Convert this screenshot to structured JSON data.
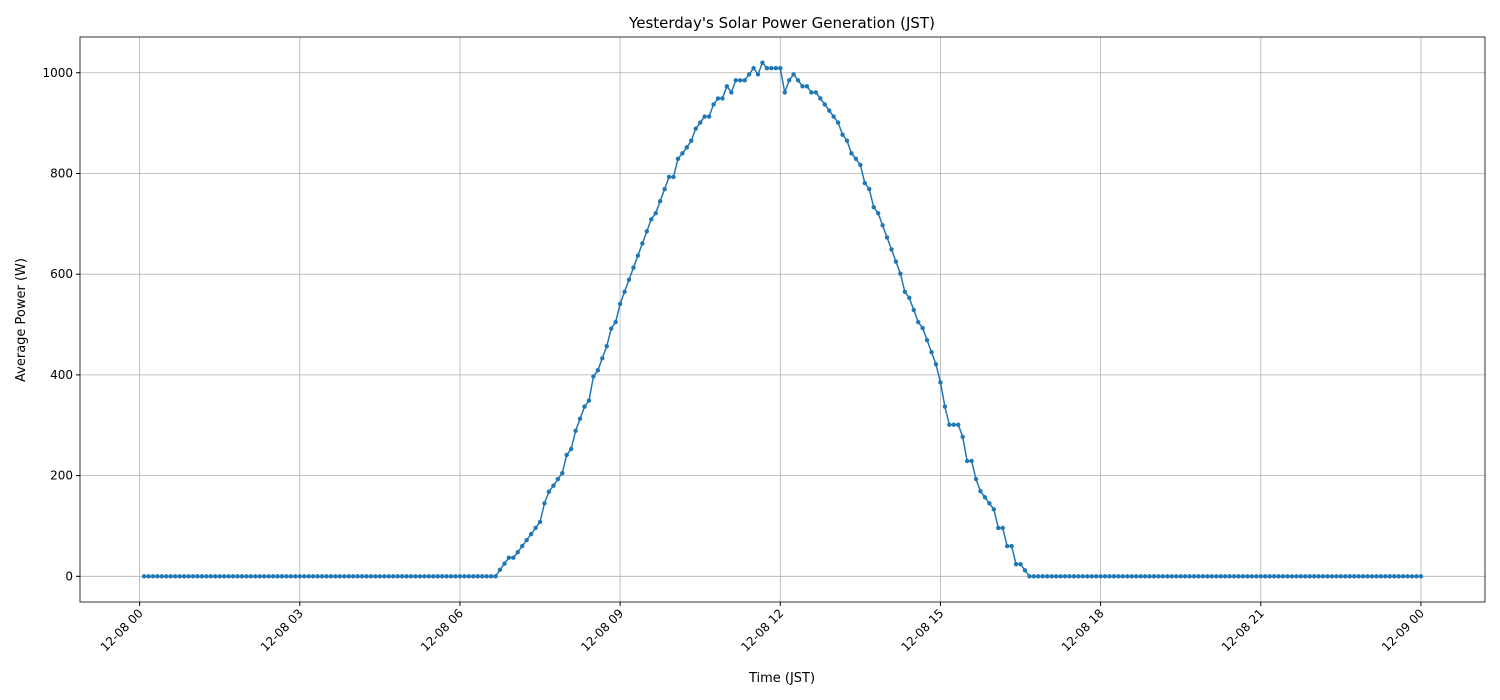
{
  "chart_data": {
    "type": "line",
    "title": "Yesterday's Solar Power Generation (JST)",
    "x_label": "Time (JST)",
    "y_label": "Average Power (W)",
    "x": [
      5,
      10,
      15,
      20,
      25,
      30,
      35,
      40,
      45,
      50,
      55,
      60,
      65,
      70,
      75,
      80,
      85,
      90,
      95,
      100,
      105,
      110,
      115,
      120,
      125,
      130,
      135,
      140,
      145,
      150,
      155,
      160,
      165,
      170,
      175,
      180,
      185,
      190,
      195,
      200,
      205,
      210,
      215,
      220,
      225,
      230,
      235,
      240,
      245,
      250,
      255,
      260,
      265,
      270,
      275,
      280,
      285,
      290,
      295,
      300,
      305,
      310,
      315,
      320,
      325,
      330,
      335,
      340,
      345,
      350,
      355,
      360,
      365,
      370,
      375,
      380,
      385,
      390,
      395,
      400,
      405,
      410,
      415,
      420,
      425,
      430,
      435,
      440,
      445,
      450,
      455,
      460,
      465,
      470,
      475,
      480,
      485,
      490,
      495,
      500,
      505,
      510,
      515,
      520,
      525,
      530,
      535,
      540,
      545,
      550,
      555,
      560,
      565,
      570,
      575,
      580,
      585,
      590,
      595,
      600,
      605,
      610,
      615,
      620,
      625,
      630,
      635,
      640,
      645,
      650,
      655,
      660,
      665,
      670,
      675,
      680,
      685,
      690,
      695,
      700,
      705,
      710,
      715,
      720,
      725,
      730,
      735,
      740,
      745,
      750,
      755,
      760,
      765,
      770,
      775,
      780,
      785,
      790,
      795,
      800,
      805,
      810,
      815,
      820,
      825,
      830,
      835,
      840,
      845,
      850,
      855,
      860,
      865,
      870,
      875,
      880,
      885,
      890,
      895,
      900,
      905,
      910,
      915,
      920,
      925,
      930,
      935,
      940,
      945,
      950,
      955,
      960,
      965,
      970,
      975,
      980,
      985,
      990,
      995,
      1000,
      1005,
      1010,
      1015,
      1020,
      1025,
      1030,
      1035,
      1040,
      1045,
      1050,
      1055,
      1060,
      1065,
      1070,
      1075,
      1080,
      1085,
      1090,
      1095,
      1100,
      1105,
      1110,
      1115,
      1120,
      1125,
      1130,
      1135,
      1140,
      1145,
      1150,
      1155,
      1160,
      1165,
      1170,
      1175,
      1180,
      1185,
      1190,
      1195,
      1200,
      1205,
      1210,
      1215,
      1220,
      1225,
      1230,
      1235,
      1240,
      1245,
      1250,
      1255,
      1260,
      1265,
      1270,
      1275,
      1280,
      1285,
      1290,
      1295,
      1300,
      1305,
      1310,
      1315,
      1320,
      1325,
      1330,
      1335,
      1340,
      1345,
      1350,
      1355,
      1360,
      1365,
      1370,
      1375,
      1380,
      1385,
      1390,
      1395,
      1400,
      1405,
      1410,
      1415,
      1420,
      1425,
      1430,
      1435,
      1440
    ],
    "series": [
      {
        "color": "#1f77b4",
        "values": [
          0,
          0,
          0,
          0,
          0,
          0,
          0,
          0,
          0,
          0,
          0,
          0,
          0,
          0,
          0,
          0,
          0,
          0,
          0,
          0,
          0,
          0,
          0,
          0,
          0,
          0,
          0,
          0,
          0,
          0,
          0,
          0,
          0,
          0,
          0,
          0,
          0,
          0,
          0,
          0,
          0,
          0,
          0,
          0,
          0,
          0,
          0,
          0,
          0,
          0,
          0,
          0,
          0,
          0,
          0,
          0,
          0,
          0,
          0,
          0,
          0,
          0,
          0,
          0,
          0,
          0,
          0,
          0,
          0,
          0,
          0,
          0,
          0,
          0,
          0,
          0,
          0,
          0,
          0,
          0,
          13,
          25,
          37,
          37,
          48,
          60,
          72,
          84,
          96,
          108,
          145,
          168,
          180,
          193,
          205,
          241,
          253,
          289,
          313,
          337,
          349,
          397,
          409,
          433,
          457,
          492,
          505,
          541,
          565,
          589,
          613,
          637,
          661,
          685,
          709,
          721,
          745,
          769,
          793,
          793,
          829,
          840,
          852,
          865,
          889,
          901,
          913,
          913,
          937,
          949,
          949,
          973,
          961,
          985,
          985,
          985,
          997,
          1009,
          997,
          1020,
          1009,
          1009,
          1009,
          1009,
          961,
          985,
          997,
          985,
          973,
          973,
          961,
          961,
          949,
          937,
          925,
          913,
          901,
          877,
          865,
          840,
          829,
          817,
          781,
          769,
          733,
          721,
          697,
          673,
          649,
          625,
          601,
          565,
          553,
          529,
          505,
          493,
          469,
          445,
          421,
          385,
          337,
          301,
          301,
          301,
          277,
          229,
          229,
          193,
          169,
          157,
          145,
          133,
          96,
          96,
          60,
          60,
          24,
          24,
          12,
          0,
          0,
          0,
          0,
          0,
          0,
          0,
          0,
          0,
          0,
          0,
          0,
          0,
          0,
          0,
          0,
          0,
          0,
          0,
          0,
          0,
          0,
          0,
          0,
          0,
          0,
          0,
          0,
          0,
          0,
          0,
          0,
          0,
          0,
          0,
          0,
          0,
          0,
          0,
          0,
          0,
          0,
          0,
          0,
          0,
          0,
          0,
          0,
          0,
          0,
          0,
          0,
          0,
          0,
          0,
          0,
          0,
          0,
          0,
          0,
          0,
          0,
          0,
          0,
          0,
          0,
          0,
          0,
          0,
          0,
          0,
          0,
          0,
          0,
          0,
          0,
          0,
          0,
          0,
          0,
          0,
          0,
          0,
          0,
          0,
          0,
          0,
          0,
          0
        ]
      }
    ],
    "xlim": [
      -67,
      1512
    ],
    "xticks": [
      {
        "value": 0,
        "label": "12-08 00"
      },
      {
        "value": 180,
        "label": "12-08 03"
      },
      {
        "value": 360,
        "label": "12-08 06"
      },
      {
        "value": 540,
        "label": "12-08 09"
      },
      {
        "value": 720,
        "label": "12-08 12"
      },
      {
        "value": 900,
        "label": "12-08 15"
      },
      {
        "value": 1080,
        "label": "12-08 18"
      },
      {
        "value": 1260,
        "label": "12-08 21"
      },
      {
        "value": 1440,
        "label": "12-09 00"
      }
    ],
    "ylim": [
      -51,
      1071
    ],
    "yticks": [
      0,
      200,
      400,
      600,
      800,
      1000
    ],
    "grid": true
  }
}
